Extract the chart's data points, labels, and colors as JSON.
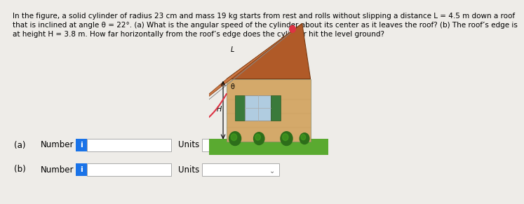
{
  "text_line1": "In the figure, a solid cylinder of radius 23 cm and mass 19 kg starts from rest and rolls without slipping a distance L = 4.5 m down a roof",
  "text_line2": "that is inclined at angle θ = 22°. (a) What is the angular speed of the cylinder about its center as it leaves the roof? (b) The roof’s edge is",
  "text_line3": "at height H = 3.8 m. How far horizontally from the roof’s edge does the cylinder hit the level ground?",
  "label_a": "(a)",
  "label_b": "(b)",
  "label_number": "Number",
  "label_units": "Units",
  "bg_color": "#eeece8",
  "box_color": "#1a73e8",
  "input_box_color": "#ffffff",
  "input_border_color": "#aaaaaa",
  "text_color": "#000000",
  "font_size_main": 7.5,
  "font_size_labels": 8.5,
  "house_color": "#d4a96a",
  "roof_color": "#b05a28",
  "roof_slope_color": "#cc7744",
  "grass_color": "#5aaa30",
  "bush_color": "#2d6e1a",
  "window_color": "#b0cce0",
  "shutter_color": "#3a7a3a",
  "traj_color": "#dd3344",
  "ball_color": "#dd3344",
  "arrow_color": "#000000"
}
